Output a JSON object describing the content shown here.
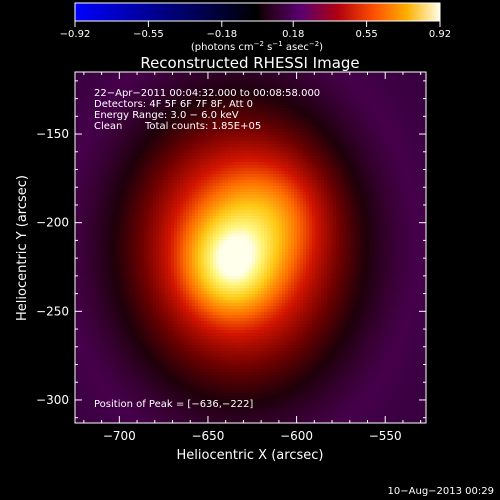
{
  "chart_data": {
    "type": "heatmap",
    "title": "Reconstructed RHESSI Image",
    "xlabel": "Heliocentric X (arcsec)",
    "ylabel": "Heliocentric Y (arcsec)",
    "xlim": [
      -725,
      -527
    ],
    "ylim": [
      -313,
      -115
    ],
    "x_ticks": [
      -700,
      -650,
      -600,
      -550
    ],
    "y_ticks": [
      -150,
      -200,
      -250,
      -300
    ],
    "x_tick_labels": [
      "−700",
      "−650",
      "−600",
      "−550"
    ],
    "y_tick_labels": [
      "−150",
      "−200",
      "−250",
      "−300"
    ],
    "grid": false,
    "colorbar": {
      "ticks": [
        -0.92,
        -0.55,
        -0.18,
        0.18,
        0.55,
        0.92
      ],
      "tick_labels": [
        "−0.92",
        "−0.55",
        "−0.18",
        "0.18",
        "0.55",
        "0.92"
      ],
      "label_prefix": "(photons cm",
      "label_sup1": "−2",
      "label_mid": " s",
      "label_sup2": "−1",
      "label_mid2": " asec",
      "label_sup3": "−2",
      "label_suffix": ")",
      "colormap": "blue-black-red-yellow-white"
    },
    "annotations": {
      "time_range": "22−Apr−2011 00:04:32.000 to 00:08:58.000",
      "detectors": "Detectors: 4F 5F 6F 7F 8F, Att 0",
      "energy_range": "Energy Range: 3.0 − 6.0 keV",
      "method": "Clean",
      "total_counts": "Total counts: 1.85E+05",
      "peak_position": "Position of Peak = [−636,−222]"
    },
    "peak": {
      "x": -636,
      "y": -222,
      "value": 0.92
    },
    "sources": [
      {
        "x": -632,
        "y": -214,
        "sigma_x": 44,
        "sigma_y": 54,
        "amplitude": 0.58
      },
      {
        "x": -637,
        "y": -223,
        "sigma_x": 16,
        "sigma_y": 18,
        "amplitude": 0.34
      },
      {
        "x": -615,
        "y": -196,
        "sigma_x": 20,
        "sigma_y": 20,
        "amplitude": 0.14
      }
    ],
    "background": 0.03
  },
  "footer": {
    "date": "10−Aug−2013 00:29"
  }
}
